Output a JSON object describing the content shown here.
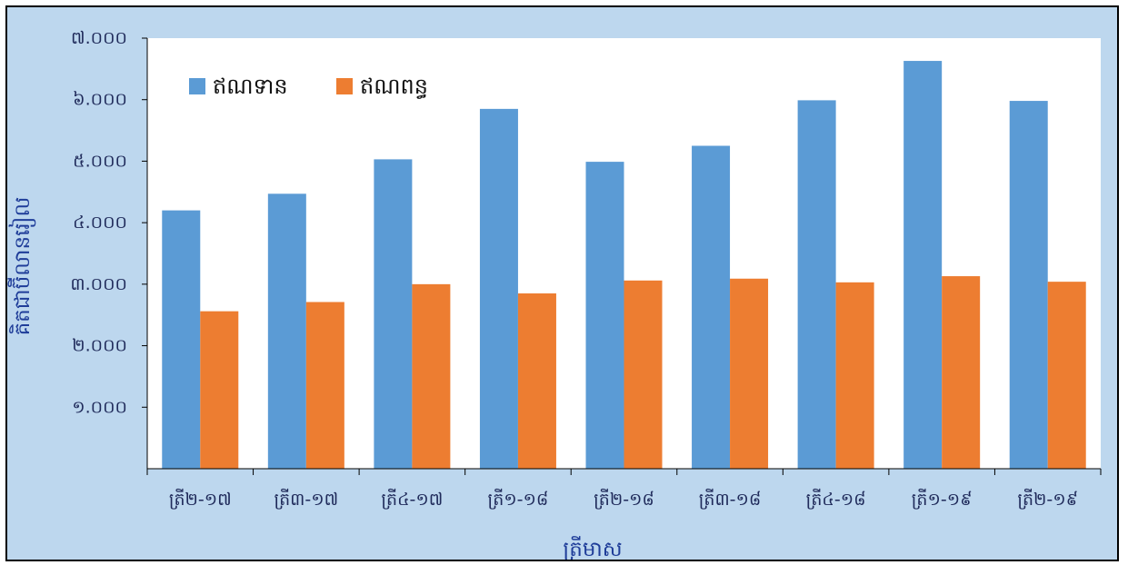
{
  "chart_data": {
    "type": "bar",
    "title": "",
    "xlabel": "ត្រីមាស",
    "ylabel": "គិតជាប៊ីលានរៀល",
    "categories": [
      "ត្រី២-១៧",
      "ត្រី៣-១៧",
      "ត្រី៤-១៧",
      "ត្រី១-១៨",
      "ត្រី២-១៨",
      "ត្រី៣-១៨",
      "ត្រី៤-១៨",
      "ត្រី១-១៩",
      "ត្រី២-១៩"
    ],
    "series": [
      {
        "name": "ឥណទាន",
        "color": "#5b9bd5",
        "values": [
          4200,
          4470,
          5030,
          5850,
          4990,
          5250,
          5990,
          6630,
          5980
        ]
      },
      {
        "name": "ឥណពន្ធ",
        "color": "#ed7d31",
        "values": [
          2560,
          2710,
          3000,
          2850,
          3060,
          3090,
          3030,
          3130,
          3040
        ]
      }
    ],
    "ylim": [
      0,
      7000
    ],
    "y_ticks": [
      1000,
      2000,
      3000,
      4000,
      5000,
      6000,
      7000
    ],
    "y_tick_labels": [
      "១.០០០",
      "២.០០០",
      "៣.០០០",
      "៤.០០០",
      "៥.០០០",
      "៦.០០០",
      "៧.០០០"
    ],
    "grid": false,
    "legend_position": "top-left",
    "background_color": "#bdd7ee",
    "plot_background_color": "#ffffff"
  }
}
